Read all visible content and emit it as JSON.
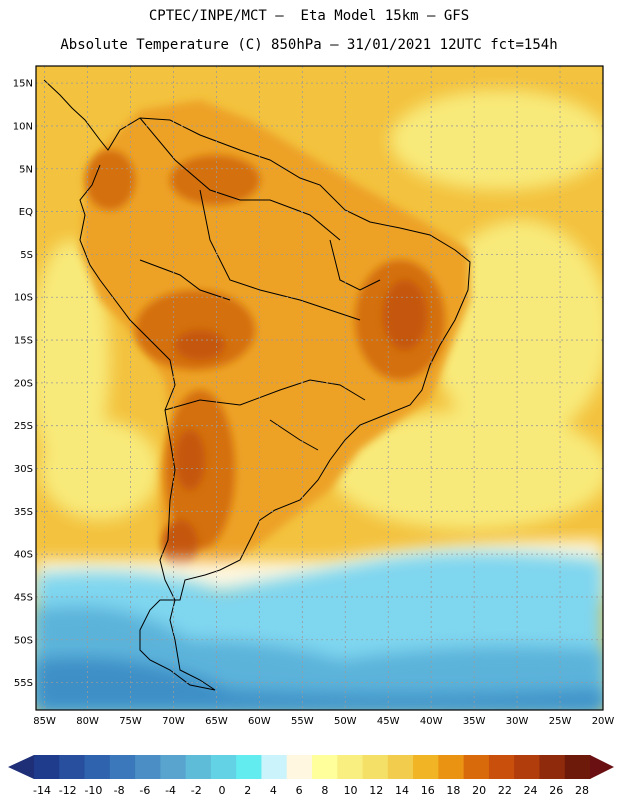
{
  "title_line1": "CPTEC/INPE/MCT –  Eta Model 15km – GFS",
  "title_line2": "Absolute Temperature (C) 850hPa – 31/01/2021 12UTC fct=154h",
  "lat_labels": [
    "15N",
    "10N",
    "5N",
    "EQ",
    "5S",
    "10S",
    "15S",
    "20S",
    "25S",
    "30S",
    "35S",
    "40S",
    "45S",
    "50S",
    "55S"
  ],
  "lon_labels": [
    "85W",
    "80W",
    "75W",
    "70W",
    "65W",
    "60W",
    "55W",
    "50W",
    "45W",
    "40W",
    "35W",
    "30W",
    "25W",
    "20W"
  ],
  "colorbar": {
    "labels": [
      "-14",
      "-12",
      "-10",
      "-8",
      "-6",
      "-4",
      "-2",
      "0",
      "2",
      "4",
      "6",
      "8",
      "10",
      "12",
      "14",
      "16",
      "18",
      "20",
      "22",
      "24",
      "26",
      "28"
    ],
    "colors": [
      "#1f3c8c",
      "#274f9e",
      "#2f63ad",
      "#3a78bb",
      "#4a8ec5",
      "#58a4cf",
      "#5fbcd8",
      "#62d2e4",
      "#62ecf0",
      "#cbf3fb",
      "#fff7df",
      "#ffff9c",
      "#f8ef80",
      "#f4e066",
      "#f2cc4c",
      "#f0b425",
      "#ea9212",
      "#d96a0c",
      "#c8500c",
      "#b13c0c",
      "#8f2b0c",
      "#6e1a0a"
    ],
    "low_arrow_color": "#1e2f78",
    "high_arrow_color": "#6a0f12"
  },
  "colors": {
    "ocean_warm": "#f3c23e",
    "ocean_cool": "#f8ea7a",
    "land_base": "#eda226",
    "land_hot": "#d4700f",
    "land_hottest": "#c5560c",
    "cold_light": "#7fd6ef",
    "cold_mid": "#5cb3da",
    "cold_deep": "#3d8fc6",
    "white_band": "#fff7df",
    "coast": "#000000",
    "grid": "#9a9a9a"
  }
}
